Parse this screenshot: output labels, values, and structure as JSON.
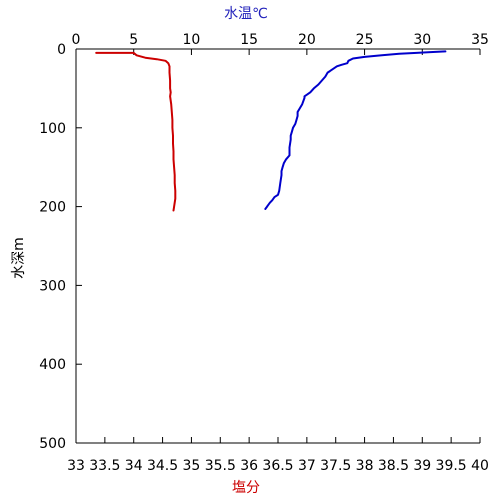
{
  "chart_data": {
    "type": "line",
    "title": "",
    "y_axis": {
      "label": "水深m",
      "ticks": [
        0,
        100,
        200,
        300,
        400,
        500
      ],
      "range": [
        0,
        500
      ],
      "inverted": true
    },
    "x_top": {
      "label": "水温℃",
      "ticks": [
        0,
        5,
        10,
        15,
        20,
        25,
        30,
        35
      ],
      "range": [
        0,
        35
      ],
      "color": "#2222bb"
    },
    "x_bottom": {
      "label": "塩分",
      "ticks": [
        33,
        33.5,
        34,
        34.5,
        35,
        35.5,
        36,
        36.5,
        37,
        37.5,
        38,
        38.5,
        39,
        39.5,
        40
      ],
      "range": [
        33,
        40
      ],
      "color": "#cc0000"
    },
    "grid": false,
    "series": [
      {
        "axis": "top",
        "color": "#0000cc",
        "points": [
          [
            32.0,
            3
          ],
          [
            30.5,
            4
          ],
          [
            29.5,
            5
          ],
          [
            28.0,
            6
          ],
          [
            26.5,
            8
          ],
          [
            25.0,
            10
          ],
          [
            24.0,
            12
          ],
          [
            23.6,
            15
          ],
          [
            23.5,
            18
          ],
          [
            23.0,
            20
          ],
          [
            22.6,
            22
          ],
          [
            22.3,
            25
          ],
          [
            22.0,
            28
          ],
          [
            21.8,
            30
          ],
          [
            21.6,
            35
          ],
          [
            21.3,
            40
          ],
          [
            21.0,
            45
          ],
          [
            20.6,
            50
          ],
          [
            20.3,
            55
          ],
          [
            20.0,
            58
          ],
          [
            19.8,
            60
          ],
          [
            19.8,
            62
          ],
          [
            19.6,
            70
          ],
          [
            19.4,
            75
          ],
          [
            19.2,
            80
          ],
          [
            19.2,
            85
          ],
          [
            19.1,
            90
          ],
          [
            19.0,
            95
          ],
          [
            18.8,
            100
          ],
          [
            18.7,
            105
          ],
          [
            18.6,
            110
          ],
          [
            18.6,
            115
          ],
          [
            18.5,
            125
          ],
          [
            18.5,
            135
          ],
          [
            18.2,
            140
          ],
          [
            18.0,
            145
          ],
          [
            17.9,
            150
          ],
          [
            17.8,
            155
          ],
          [
            17.8,
            160
          ],
          [
            17.7,
            170
          ],
          [
            17.6,
            180
          ],
          [
            17.5,
            185
          ],
          [
            17.2,
            188
          ],
          [
            17.0,
            192
          ],
          [
            16.8,
            195
          ],
          [
            16.6,
            199
          ],
          [
            16.5,
            201
          ],
          [
            16.4,
            203
          ]
        ]
      },
      {
        "axis": "bottom",
        "color": "#cc0000",
        "points": [
          [
            33.35,
            5
          ],
          [
            34.0,
            5
          ],
          [
            34.05,
            8
          ],
          [
            34.2,
            11
          ],
          [
            34.4,
            13
          ],
          [
            34.55,
            15
          ],
          [
            34.6,
            18
          ],
          [
            34.62,
            22
          ],
          [
            34.62,
            30
          ],
          [
            34.63,
            40
          ],
          [
            34.63,
            50
          ],
          [
            34.64,
            55
          ],
          [
            34.63,
            60
          ],
          [
            34.65,
            70
          ],
          [
            34.66,
            80
          ],
          [
            34.67,
            90
          ],
          [
            34.67,
            100
          ],
          [
            34.68,
            110
          ],
          [
            34.68,
            120
          ],
          [
            34.69,
            130
          ],
          [
            34.69,
            140
          ],
          [
            34.7,
            150
          ],
          [
            34.71,
            160
          ],
          [
            34.71,
            170
          ],
          [
            34.72,
            180
          ],
          [
            34.72,
            190
          ],
          [
            34.71,
            195
          ],
          [
            34.7,
            200
          ],
          [
            34.69,
            205
          ]
        ]
      }
    ]
  }
}
